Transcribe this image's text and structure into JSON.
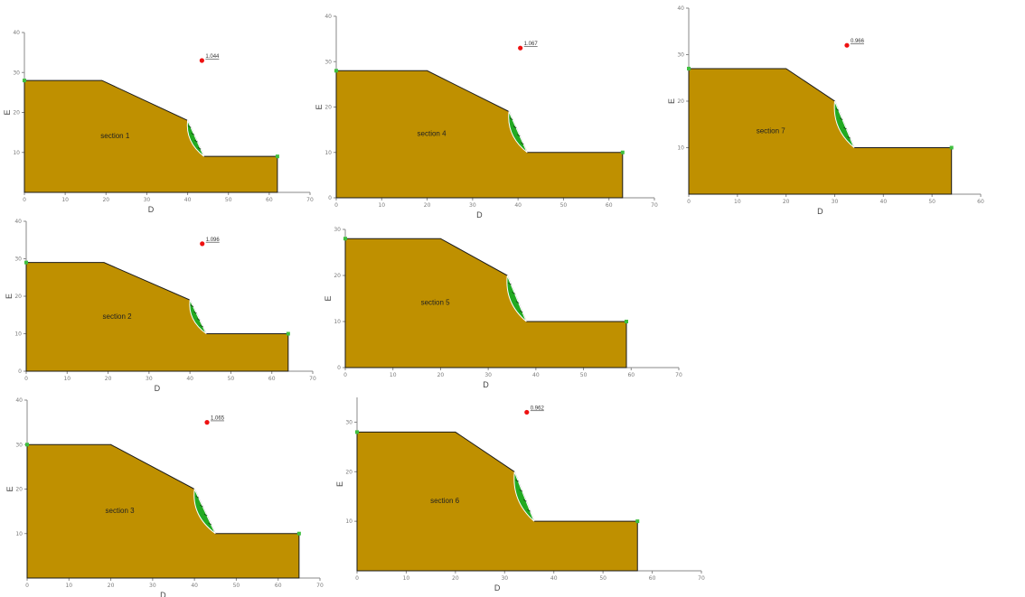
{
  "panels": [
    {
      "id": "p1",
      "section_label": "section 1",
      "fs_label": "1.044",
      "x_label": "D",
      "y_label": "E",
      "x_ticks": [
        "0",
        "10",
        "20",
        "30",
        "40",
        "50",
        "60",
        "70"
      ],
      "y_ticks": [
        "10",
        "20",
        "30",
        "40"
      ],
      "x_max": 70,
      "y_min": 0,
      "y_max": 40,
      "geometry": {
        "x_end": 62,
        "crest_y": 28,
        "toe_y": 9,
        "bench_x": 19,
        "break_x": 40,
        "break_y": 18,
        "toe_x": 44
      },
      "critical_point": {
        "x": 43.5,
        "y": 33
      }
    },
    {
      "id": "p2",
      "section_label": "section 4",
      "fs_label": "1.067",
      "x_label": "D",
      "y_label": "E",
      "x_ticks": [
        "0",
        "10",
        "20",
        "30",
        "40",
        "50",
        "60",
        "70"
      ],
      "y_ticks": [
        "0",
        "10",
        "20",
        "30",
        "40"
      ],
      "x_max": 70,
      "y_min": 0,
      "y_max": 40,
      "geometry": {
        "x_end": 63,
        "crest_y": 28,
        "toe_y": 10,
        "bench_x": 20,
        "break_x": 38,
        "break_y": 19,
        "toe_x": 42
      },
      "critical_point": {
        "x": 40.5,
        "y": 33
      }
    },
    {
      "id": "p3",
      "section_label": "section 7",
      "fs_label": "0.966",
      "x_label": "D",
      "y_label": "E",
      "x_ticks": [
        "0",
        "10",
        "20",
        "30",
        "40",
        "50",
        "60"
      ],
      "y_ticks": [
        "10",
        "20",
        "30",
        "40"
      ],
      "x_max": 60,
      "y_min": 0,
      "y_max": 40,
      "geometry": {
        "x_end": 54,
        "crest_y": 27,
        "toe_y": 10,
        "bench_x": 20,
        "break_x": 30,
        "break_y": 20,
        "toe_x": 34
      },
      "critical_point": {
        "x": 32.5,
        "y": 32
      }
    },
    {
      "id": "p4",
      "section_label": "section 2",
      "fs_label": "1.096",
      "x_label": "D",
      "y_label": "E",
      "x_ticks": [
        "0",
        "10",
        "20",
        "30",
        "40",
        "50",
        "60",
        "70"
      ],
      "y_ticks": [
        "0",
        "10",
        "20",
        "30",
        "40"
      ],
      "x_max": 70,
      "y_min": 0,
      "y_max": 40,
      "geometry": {
        "x_end": 64,
        "crest_y": 29,
        "toe_y": 10,
        "bench_x": 19,
        "break_x": 40,
        "break_y": 19,
        "toe_x": 44
      },
      "critical_point": {
        "x": 43,
        "y": 34
      }
    },
    {
      "id": "p5",
      "section_label": "section 5",
      "fs_label": "",
      "x_label": "D",
      "y_label": "E",
      "x_ticks": [
        "0",
        "10",
        "20",
        "30",
        "40",
        "50",
        "60",
        "70"
      ],
      "y_ticks": [
        "0",
        "10",
        "20",
        "30"
      ],
      "x_max": 70,
      "y_min": 0,
      "y_max": 30,
      "geometry": {
        "x_end": 59,
        "crest_y": 28,
        "toe_y": 10,
        "bench_x": 20,
        "break_x": 34,
        "break_y": 20,
        "toe_x": 38
      },
      "critical_point": null
    },
    {
      "id": "p6",
      "section_label": "section 3",
      "fs_label": "1.065",
      "x_label": "D",
      "y_label": "E",
      "x_ticks": [
        "0",
        "10",
        "20",
        "30",
        "40",
        "50",
        "60",
        "70"
      ],
      "y_ticks": [
        "10",
        "20",
        "30",
        "40"
      ],
      "x_max": 70,
      "y_min": 0,
      "y_max": 40,
      "geometry": {
        "x_end": 65,
        "crest_y": 30,
        "toe_y": 10,
        "bench_x": 20,
        "break_x": 40,
        "break_y": 20,
        "toe_x": 45
      },
      "critical_point": {
        "x": 43,
        "y": 35
      }
    },
    {
      "id": "p7",
      "section_label": "section 6",
      "fs_label": "0.962",
      "x_label": "D",
      "y_label": "E",
      "x_ticks": [
        "0",
        "10",
        "20",
        "30",
        "40",
        "50",
        "60",
        "70"
      ],
      "y_ticks": [
        "10",
        "20",
        "30"
      ],
      "x_max": 70,
      "y_min": 0,
      "y_max": 35,
      "geometry": {
        "x_end": 57,
        "crest_y": 28,
        "toe_y": 10,
        "bench_x": 20,
        "break_x": 32,
        "break_y": 20,
        "toe_x": 36
      },
      "critical_point": {
        "x": 34.5,
        "y": 32
      }
    }
  ]
}
